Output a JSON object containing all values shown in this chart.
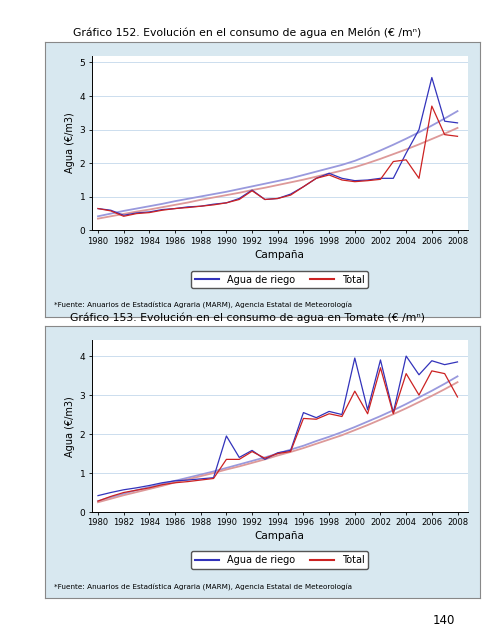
{
  "title1": "Gráfico 152. Evolución en el consumo de agua en Melón (€ /m",
  "title1_sup": "3",
  "title1_end": ")",
  "title2": "Gráfico 153. Evolución en el consumo de agua en Tomate (€ /m",
  "title2_sup": "3",
  "title2_end": ")",
  "ylabel": "Agua (€/m3)",
  "xlabel": "Campaña",
  "source": "*Fuente: Anuarios de Estadística Agraria (MARM), Agencia Estatal de Meteorología",
  "legend_agua": "Agua de riego",
  "legend_total": "Total",
  "page_number": "140",
  "color_agua": "#3333bb",
  "color_total": "#cc2222",
  "color_trend_agua": "#9999dd",
  "color_trend_total": "#dd9999",
  "bg_color": "#d8e8f0",
  "years": [
    1980,
    1981,
    1982,
    1983,
    1984,
    1985,
    1986,
    1987,
    1988,
    1989,
    1990,
    1991,
    1992,
    1993,
    1994,
    1995,
    1996,
    1997,
    1998,
    1999,
    2000,
    2001,
    2002,
    2003,
    2004,
    2005,
    2006,
    2007,
    2008
  ],
  "melon_agua": [
    0.65,
    0.6,
    0.45,
    0.52,
    0.55,
    0.62,
    0.65,
    0.7,
    0.72,
    0.78,
    0.82,
    0.95,
    1.2,
    0.92,
    0.95,
    1.08,
    1.3,
    1.55,
    1.7,
    1.55,
    1.48,
    1.5,
    1.55,
    1.55,
    2.3,
    3.0,
    4.55,
    3.25,
    3.2
  ],
  "melon_total": [
    0.65,
    0.58,
    0.42,
    0.5,
    0.53,
    0.6,
    0.65,
    0.68,
    0.72,
    0.76,
    0.82,
    0.92,
    1.18,
    0.92,
    0.95,
    1.05,
    1.3,
    1.55,
    1.65,
    1.5,
    1.45,
    1.48,
    1.52,
    2.05,
    2.1,
    1.55,
    3.7,
    2.85,
    2.8
  ],
  "melon_trend_agua": [
    0.42,
    0.5,
    0.58,
    0.65,
    0.72,
    0.79,
    0.87,
    0.94,
    1.01,
    1.08,
    1.15,
    1.23,
    1.31,
    1.39,
    1.47,
    1.55,
    1.65,
    1.75,
    1.85,
    1.95,
    2.07,
    2.22,
    2.38,
    2.55,
    2.73,
    2.92,
    3.12,
    3.33,
    3.55
  ],
  "melon_trend_total": [
    0.35,
    0.42,
    0.49,
    0.56,
    0.62,
    0.69,
    0.76,
    0.83,
    0.91,
    0.98,
    1.05,
    1.12,
    1.2,
    1.27,
    1.35,
    1.43,
    1.51,
    1.6,
    1.69,
    1.78,
    1.88,
    2.0,
    2.13,
    2.27,
    2.41,
    2.56,
    2.72,
    2.88,
    3.05
  ],
  "ylim1": [
    0,
    5.2
  ],
  "yticks1": [
    0,
    1,
    2,
    3,
    4,
    5
  ],
  "tomate_agua": [
    0.42,
    0.5,
    0.57,
    0.62,
    0.68,
    0.75,
    0.8,
    0.82,
    0.85,
    0.88,
    1.95,
    1.4,
    1.58,
    1.35,
    1.52,
    1.58,
    2.55,
    2.42,
    2.58,
    2.5,
    3.95,
    2.62,
    3.9,
    2.55,
    4.0,
    3.52,
    3.88,
    3.78,
    3.85
  ],
  "tomate_total": [
    0.28,
    0.4,
    0.5,
    0.56,
    0.62,
    0.7,
    0.75,
    0.78,
    0.82,
    0.86,
    1.35,
    1.35,
    1.55,
    1.38,
    1.5,
    1.55,
    2.4,
    2.38,
    2.52,
    2.45,
    3.1,
    2.52,
    3.7,
    2.52,
    3.55,
    3.0,
    3.62,
    3.55,
    2.95
  ],
  "tomate_trend_agua": [
    0.28,
    0.38,
    0.47,
    0.56,
    0.64,
    0.72,
    0.8,
    0.88,
    0.96,
    1.04,
    1.13,
    1.22,
    1.31,
    1.4,
    1.5,
    1.6,
    1.7,
    1.82,
    1.93,
    2.05,
    2.18,
    2.32,
    2.46,
    2.61,
    2.77,
    2.94,
    3.11,
    3.29,
    3.48
  ],
  "tomate_trend_total": [
    0.25,
    0.34,
    0.43,
    0.51,
    0.59,
    0.67,
    0.76,
    0.84,
    0.92,
    1.0,
    1.09,
    1.17,
    1.26,
    1.35,
    1.45,
    1.54,
    1.64,
    1.75,
    1.86,
    1.97,
    2.1,
    2.23,
    2.37,
    2.51,
    2.66,
    2.82,
    2.98,
    3.15,
    3.33
  ],
  "ylim2": [
    0,
    4.4
  ],
  "yticks2": [
    0,
    1,
    2,
    3,
    4
  ]
}
